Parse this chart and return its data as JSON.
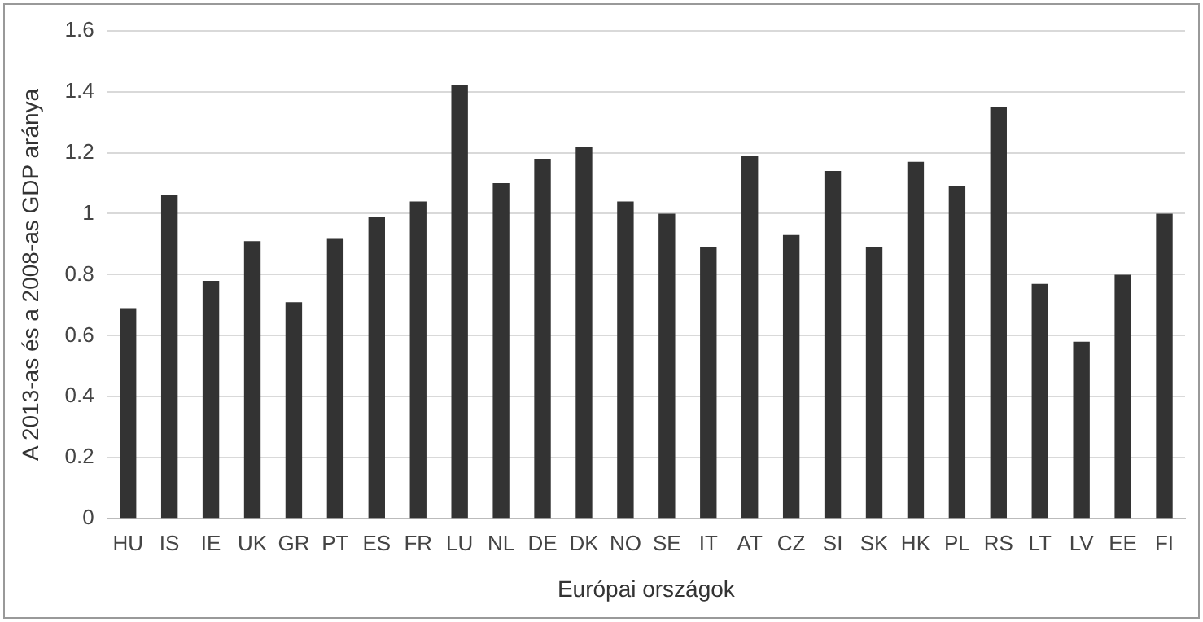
{
  "chart_data": {
    "type": "bar",
    "xlabel": "Európai országok",
    "ylabel": "A 2013-as és a 2008-as GDP aránya",
    "categories": [
      "HU",
      "IS",
      "IE",
      "UK",
      "GR",
      "PT",
      "ES",
      "FR",
      "LU",
      "NL",
      "DE",
      "DK",
      "NO",
      "SE",
      "IT",
      "AT",
      "CZ",
      "SI",
      "SK",
      "HK",
      "PL",
      "RS",
      "LT",
      "LV",
      "EE",
      "FI"
    ],
    "values": [
      0.69,
      1.06,
      0.78,
      0.91,
      0.71,
      0.92,
      0.99,
      1.04,
      1.42,
      1.1,
      1.18,
      1.22,
      1.04,
      1.0,
      0.89,
      1.19,
      0.93,
      1.14,
      0.89,
      1.17,
      1.09,
      1.35,
      0.77,
      0.58,
      0.8,
      1.0
    ],
    "color": "#333333",
    "ylim": [
      0,
      1.6
    ],
    "yticks": [
      0,
      0.2,
      0.4,
      0.6,
      0.8,
      1,
      1.2,
      1.4,
      1.6
    ],
    "grid": "y",
    "legend": false
  }
}
